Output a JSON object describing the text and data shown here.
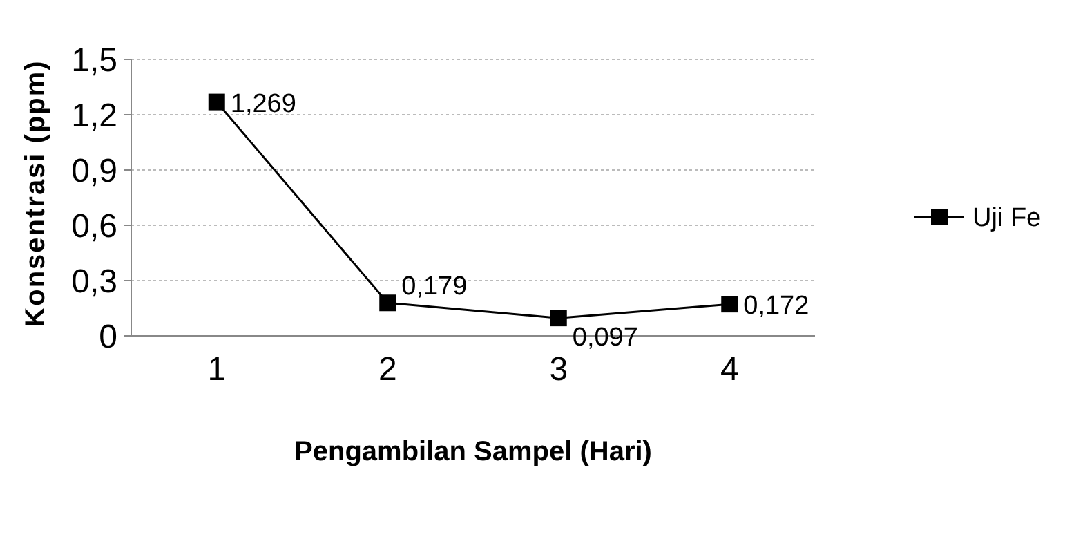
{
  "chart_data": {
    "type": "line",
    "xlabel": "Pengambilan Sampel (Hari)",
    "ylabel": "Konsentrasi (ppm)",
    "categories": [
      "1",
      "2",
      "3",
      "4"
    ],
    "series": [
      {
        "name": "Uji Fe",
        "color": "#000000",
        "values": [
          1.269,
          0.179,
          0.097,
          0.172
        ],
        "value_labels": [
          "1,269",
          "0,179",
          "0,097",
          "0,172"
        ]
      }
    ],
    "ylim": [
      0,
      1.5
    ],
    "yticks": [
      {
        "value": 0,
        "label": "0"
      },
      {
        "value": 0.3,
        "label": "0,3"
      },
      {
        "value": 0.6,
        "label": "0,6"
      },
      {
        "value": 0.9,
        "label": "0,9"
      },
      {
        "value": 1.2,
        "label": "1,2"
      },
      {
        "value": 1.5,
        "label": "1,5"
      }
    ],
    "grid": "y",
    "legend": "right",
    "marker": "square",
    "line_style": "solid"
  }
}
